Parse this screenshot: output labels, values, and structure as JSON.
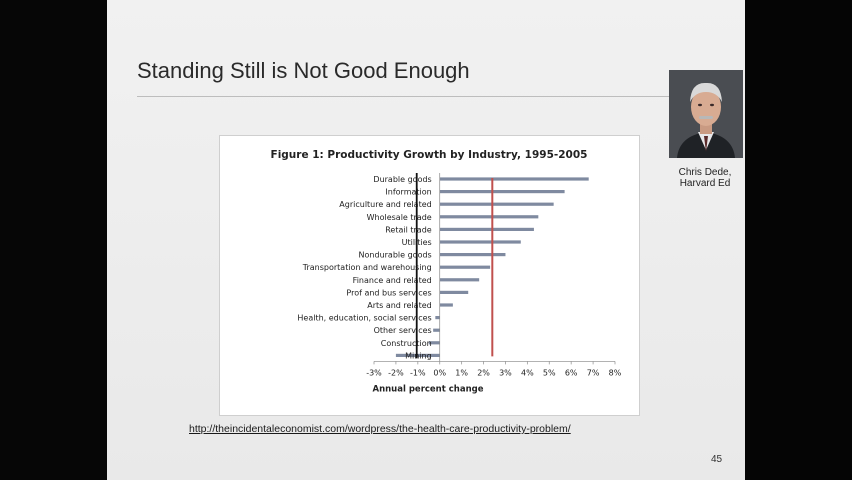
{
  "slide": {
    "title": "Standing Still is Not Good Enough",
    "caption_line1": "Chris Dede,",
    "caption_line2": "Harvard Ed",
    "url": "http://theincidentaleconomist.com/wordpress/the-health-care-productivity-problem/",
    "page_number": "45"
  },
  "colors": {
    "bar": "#7f8aa0",
    "average_line": "#c0504d",
    "zero_line": "#111111"
  },
  "chart_data": {
    "type": "bar",
    "orientation": "horizontal",
    "title": "Figure 1: Productivity Growth by Industry, 1995-2005",
    "xlabel": "Annual percent change",
    "ylabel": "",
    "xlim": [
      -3,
      8
    ],
    "xticks": [
      "-3%",
      "-2%",
      "-1%",
      "0%",
      "1%",
      "2%",
      "3%",
      "4%",
      "5%",
      "6%",
      "7%",
      "8%"
    ],
    "categories": [
      "Durable goods",
      "Information",
      "Agriculture and related",
      "Wholesale trade",
      "Retail trade",
      "Utilities",
      "Nondurable goods",
      "Transportation and warehousing",
      "Finance and related",
      "Prof and bus services",
      "Arts and related",
      "Health, education, social services",
      "Other services",
      "Construction",
      "Mining"
    ],
    "values": [
      6.8,
      5.7,
      5.2,
      4.5,
      4.3,
      3.7,
      3.0,
      2.3,
      1.8,
      1.3,
      0.6,
      -0.2,
      -0.3,
      -0.5,
      -2.0
    ],
    "reference_lines": [
      {
        "x": 2.4
      },
      {
        "x": -1.05
      }
    ],
    "grid": false
  }
}
